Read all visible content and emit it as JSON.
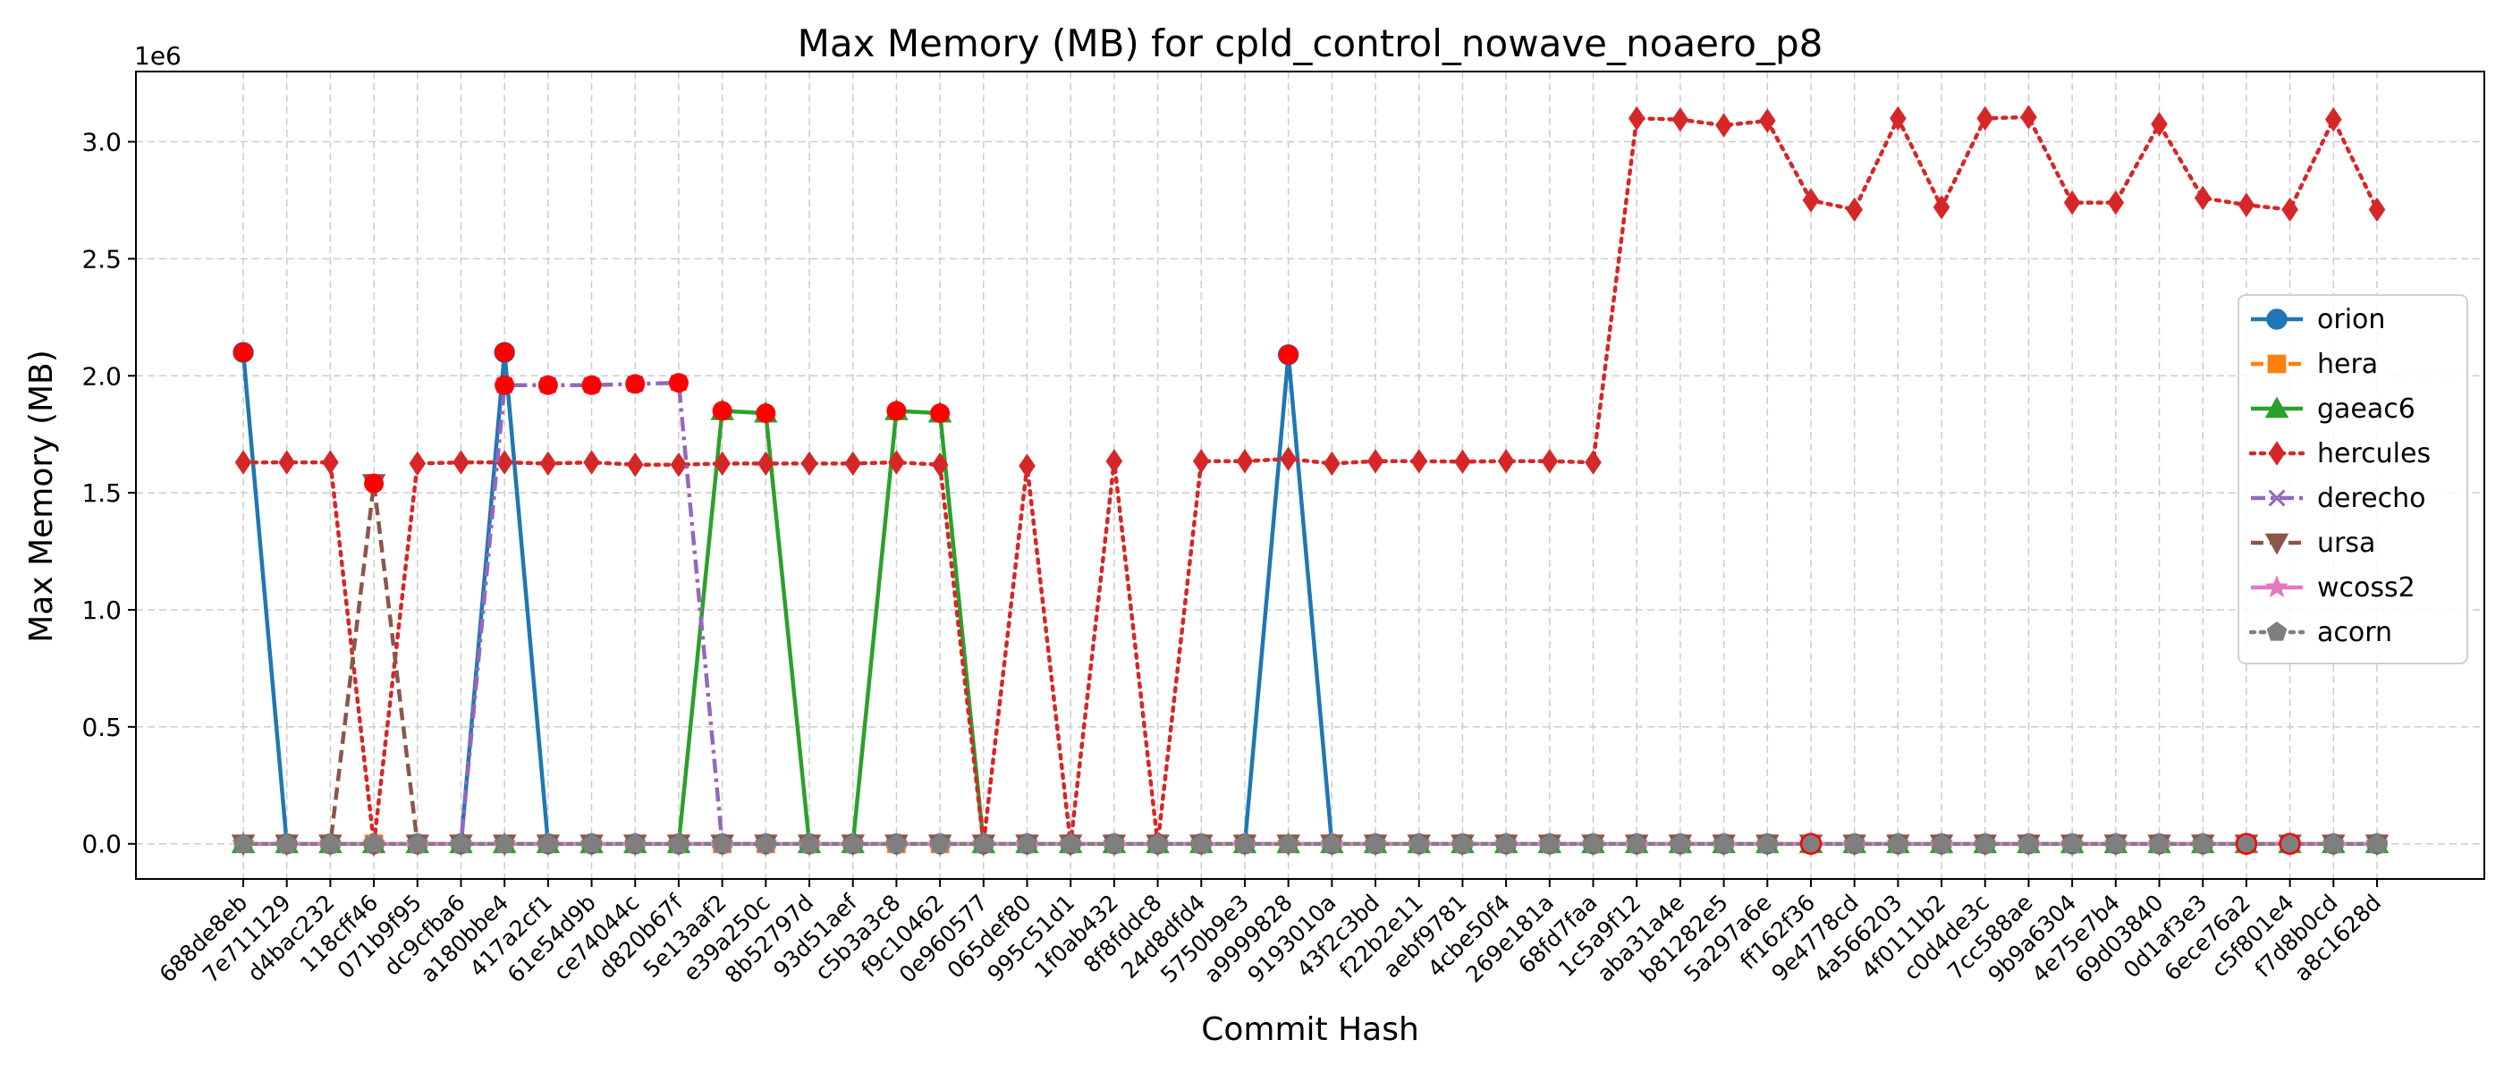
{
  "chart_data": {
    "type": "line",
    "title": "Max Memory (MB) for cpld_control_nowave_noaero_p8",
    "xlabel": "Commit Hash",
    "ylabel": "Max Memory (MB)",
    "y_scale_label": "1e6",
    "ylim": [
      -150000,
      3300000
    ],
    "yticks": [
      0,
      500000,
      1000000,
      1500000,
      2000000,
      2500000,
      3000000
    ],
    "ytick_labels": [
      "0.0",
      "0.5",
      "1.0",
      "1.5",
      "2.0",
      "2.5",
      "3.0"
    ],
    "grid": true,
    "legend_position": "center-right",
    "categories": [
      "688de8eb",
      "7e711129",
      "d4bac232",
      "118cff46",
      "071b9f95",
      "dc9cfba6",
      "a180bbe4",
      "417a2cf1",
      "61e54d9b",
      "ce74044c",
      "d820b67f",
      "5e13aaf2",
      "e39a250c",
      "8b52797d",
      "93d51aef",
      "c5b3a3c8",
      "f9c10462",
      "0e960577",
      "065def80",
      "995c51d1",
      "1f0ab432",
      "8f8fddc8",
      "24d8dfd4",
      "5750b9e3",
      "a9999828",
      "9193010a",
      "43f2c3bd",
      "f22b2e11",
      "aebf9781",
      "4cbe50f4",
      "269e181a",
      "68fd7faa",
      "1c5a9f12",
      "aba31a4e",
      "b81282e5",
      "5a297a6e",
      "ff162f36",
      "9e4778cd",
      "4a566203",
      "4f0111b2",
      "c0d4de3c",
      "7cc588ae",
      "9b9a6304",
      "4e75e7b4",
      "69d03840",
      "0d1af3e3",
      "6ece76a2",
      "c5f801e4",
      "f7d8b0cd",
      "a8c1628d"
    ],
    "series": [
      {
        "name": "orion",
        "color": "#1f77b4",
        "marker": "circle",
        "dash": "solid",
        "values": [
          2100000,
          0,
          0,
          0,
          0,
          0,
          2100000,
          0,
          0,
          0,
          0,
          0,
          0,
          0,
          0,
          0,
          0,
          0,
          0,
          0,
          0,
          0,
          0,
          0,
          2090000,
          0,
          0,
          0,
          0,
          0,
          0,
          0,
          0,
          0,
          0,
          0,
          0,
          0,
          0,
          0,
          0,
          0,
          0,
          0,
          0,
          0,
          0,
          0,
          0,
          0
        ]
      },
      {
        "name": "hera",
        "color": "#ff7f0e",
        "marker": "square",
        "dash": "dashed",
        "values": [
          0,
          0,
          0,
          0,
          0,
          0,
          0,
          0,
          0,
          0,
          0,
          0,
          0,
          0,
          0,
          0,
          0,
          0,
          0,
          0,
          0,
          0,
          0,
          0,
          0,
          0,
          0,
          0,
          0,
          0,
          0,
          0,
          0,
          0,
          0,
          0,
          0,
          0,
          0,
          0,
          0,
          0,
          0,
          0,
          0,
          0,
          0,
          0,
          0,
          0
        ]
      },
      {
        "name": "gaeac6",
        "color": "#2ca02c",
        "marker": "triangle-up",
        "dash": "solid",
        "values": [
          0,
          0,
          0,
          0,
          0,
          0,
          0,
          0,
          0,
          0,
          0,
          1850000,
          1840000,
          0,
          0,
          1850000,
          1840000,
          0,
          0,
          0,
          0,
          0,
          0,
          0,
          0,
          0,
          0,
          0,
          0,
          0,
          0,
          0,
          0,
          0,
          0,
          0,
          0,
          0,
          0,
          0,
          0,
          0,
          0,
          0,
          0,
          0,
          0,
          0,
          0,
          0
        ]
      },
      {
        "name": "hercules",
        "color": "#d62728",
        "marker": "diamond",
        "dash": "dotted",
        "values": [
          1630000,
          1630000,
          1630000,
          0,
          1625000,
          1630000,
          1630000,
          1625000,
          1630000,
          1620000,
          1620000,
          1625000,
          1625000,
          1625000,
          1625000,
          1630000,
          1620000,
          0,
          1615000,
          0,
          1635000,
          0,
          1635000,
          1635000,
          1645000,
          1625000,
          1635000,
          1635000,
          1633000,
          1635000,
          1635000,
          1630000,
          3100000,
          3095000,
          3070000,
          3090000,
          2750000,
          2710000,
          3100000,
          2720000,
          3100000,
          3105000,
          2740000,
          2740000,
          3075000,
          2760000,
          2730000,
          2710000,
          3095000,
          2710000
        ]
      },
      {
        "name": "derecho",
        "color": "#9467bd",
        "marker": "x",
        "dash": "dashdot",
        "values": [
          0,
          0,
          0,
          0,
          0,
          0,
          1960000,
          1960000,
          1960000,
          1965000,
          1970000,
          0,
          0,
          0,
          0,
          0,
          0,
          0,
          0,
          0,
          0,
          0,
          0,
          0,
          0,
          0,
          0,
          0,
          0,
          0,
          0,
          0,
          0,
          0,
          0,
          0,
          0,
          0,
          0,
          0,
          0,
          0,
          0,
          0,
          0,
          0,
          0,
          0,
          0,
          0
        ]
      },
      {
        "name": "ursa",
        "color": "#8c564b",
        "marker": "triangle-down",
        "dash": "dashed",
        "values": [
          0,
          0,
          0,
          1540000,
          0,
          0,
          0,
          0,
          0,
          0,
          0,
          0,
          0,
          0,
          0,
          0,
          0,
          0,
          0,
          0,
          0,
          0,
          0,
          0,
          0,
          0,
          0,
          0,
          0,
          0,
          0,
          0,
          0,
          0,
          0,
          0,
          0,
          0,
          0,
          0,
          0,
          0,
          0,
          0,
          0,
          0,
          0,
          0,
          0,
          0
        ]
      },
      {
        "name": "wcoss2",
        "color": "#e377c2",
        "marker": "star",
        "dash": "solid",
        "values": [
          0,
          0,
          0,
          0,
          0,
          0,
          0,
          0,
          0,
          0,
          0,
          0,
          0,
          0,
          0,
          0,
          0,
          0,
          0,
          0,
          0,
          0,
          0,
          0,
          0,
          0,
          0,
          0,
          0,
          0,
          0,
          0,
          0,
          0,
          0,
          0,
          0,
          0,
          0,
          0,
          0,
          0,
          0,
          0,
          0,
          0,
          0,
          0,
          0,
          0
        ]
      },
      {
        "name": "acorn",
        "color": "#7f7f7f",
        "marker": "pentagon",
        "dash": "dotted",
        "values": [
          0,
          0,
          0,
          0,
          0,
          0,
          0,
          0,
          0,
          0,
          0,
          0,
          0,
          0,
          0,
          0,
          0,
          0,
          0,
          0,
          0,
          0,
          0,
          0,
          0,
          0,
          0,
          0,
          0,
          0,
          0,
          0,
          0,
          0,
          0,
          0,
          0,
          0,
          0,
          0,
          0,
          0,
          0,
          0,
          0,
          0,
          0,
          0,
          0,
          0
        ]
      }
    ],
    "highlight_color": "#ff0000",
    "highlighted_points": [
      {
        "x": "688de8eb",
        "y": 2100000
      },
      {
        "x": "118cff46",
        "y": 1540000
      },
      {
        "x": "a180bbe4",
        "y": 2100000
      },
      {
        "x": "a180bbe4",
        "y": 1960000
      },
      {
        "x": "417a2cf1",
        "y": 1960000
      },
      {
        "x": "61e54d9b",
        "y": 1960000
      },
      {
        "x": "ce74044c",
        "y": 1965000
      },
      {
        "x": "d820b67f",
        "y": 1970000
      },
      {
        "x": "5e13aaf2",
        "y": 1850000
      },
      {
        "x": "e39a250c",
        "y": 1840000
      },
      {
        "x": "c5b3a3c8",
        "y": 1850000
      },
      {
        "x": "f9c10462",
        "y": 1840000
      },
      {
        "x": "a9999828",
        "y": 2090000
      }
    ],
    "hollow_highlighted_points": [
      {
        "x": "ff162f36",
        "y": 0
      },
      {
        "x": "6ece76a2",
        "y": 0
      },
      {
        "x": "c5f801e4",
        "y": 0
      }
    ]
  }
}
